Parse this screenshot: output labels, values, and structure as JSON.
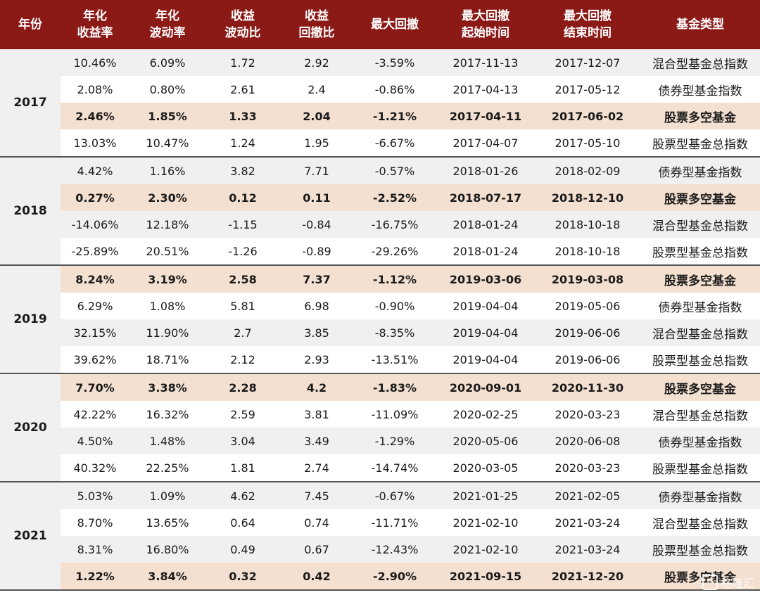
{
  "headers": [
    [
      "年份"
    ],
    [
      "年化",
      "收益率"
    ],
    [
      "年化",
      "波动率"
    ],
    [
      "收益",
      "波动比"
    ],
    [
      "收益",
      "回撤比"
    ],
    [
      "最大回撤"
    ],
    [
      "最大回撤",
      "起始时间"
    ],
    [
      "最大回撤",
      "结束时间"
    ],
    [
      "基金类型"
    ]
  ],
  "groups": [
    {
      "year": "2017",
      "rows": [
        {
          "cells": [
            "10.46%",
            "6.09%",
            "1.72",
            "2.92",
            "-3.59%",
            "2017-11-13",
            "2017-12-07",
            "混合型基金总指数"
          ],
          "highlight": false
        },
        {
          "cells": [
            "2.08%",
            "0.80%",
            "2.61",
            "2.4",
            "-0.86%",
            "2017-04-13",
            "2017-05-12",
            "债券型基金指数"
          ],
          "highlight": false
        },
        {
          "cells": [
            "2.46%",
            "1.85%",
            "1.33",
            "2.04",
            "-1.21%",
            "2017-04-11",
            "2017-06-02",
            "股票多空基金"
          ],
          "highlight": true
        },
        {
          "cells": [
            "13.03%",
            "10.47%",
            "1.24",
            "1.95",
            "-6.67%",
            "2017-04-07",
            "2017-05-10",
            "股票型基金总指数"
          ],
          "highlight": false
        }
      ]
    },
    {
      "year": "2018",
      "rows": [
        {
          "cells": [
            "4.42%",
            "1.16%",
            "3.82",
            "7.71",
            "-0.57%",
            "2018-01-26",
            "2018-02-09",
            "债券型基金指数"
          ],
          "highlight": false
        },
        {
          "cells": [
            "0.27%",
            "2.30%",
            "0.12",
            "0.11",
            "-2.52%",
            "2018-07-17",
            "2018-12-10",
            "股票多空基金"
          ],
          "highlight": true
        },
        {
          "cells": [
            "-14.06%",
            "12.18%",
            "-1.15",
            "-0.84",
            "-16.75%",
            "2018-01-24",
            "2018-10-18",
            "混合型基金总指数"
          ],
          "highlight": false
        },
        {
          "cells": [
            "-25.89%",
            "20.51%",
            "-1.26",
            "-0.89",
            "-29.26%",
            "2018-01-24",
            "2018-10-18",
            "股票型基金总指数"
          ],
          "highlight": false
        }
      ]
    },
    {
      "year": "2019",
      "rows": [
        {
          "cells": [
            "8.24%",
            "3.19%",
            "2.58",
            "7.37",
            "-1.12%",
            "2019-03-06",
            "2019-03-08",
            "股票多空基金"
          ],
          "highlight": true
        },
        {
          "cells": [
            "6.29%",
            "1.08%",
            "5.81",
            "6.98",
            "-0.90%",
            "2019-04-04",
            "2019-05-06",
            "债券型基金指数"
          ],
          "highlight": false
        },
        {
          "cells": [
            "32.15%",
            "11.90%",
            "2.7",
            "3.85",
            "-8.35%",
            "2019-04-04",
            "2019-06-06",
            "混合型基金总指数"
          ],
          "highlight": false
        },
        {
          "cells": [
            "39.62%",
            "18.71%",
            "2.12",
            "2.93",
            "-13.51%",
            "2019-04-04",
            "2019-06-06",
            "股票型基金总指数"
          ],
          "highlight": false
        }
      ]
    },
    {
      "year": "2020",
      "rows": [
        {
          "cells": [
            "7.70%",
            "3.38%",
            "2.28",
            "4.2",
            "-1.83%",
            "2020-09-01",
            "2020-11-30",
            "股票多空基金"
          ],
          "highlight": true
        },
        {
          "cells": [
            "42.22%",
            "16.32%",
            "2.59",
            "3.81",
            "-11.09%",
            "2020-02-25",
            "2020-03-23",
            "混合型基金总指数"
          ],
          "highlight": false
        },
        {
          "cells": [
            "4.50%",
            "1.48%",
            "3.04",
            "3.49",
            "-1.29%",
            "2020-05-06",
            "2020-06-08",
            "债券型基金指数"
          ],
          "highlight": false
        },
        {
          "cells": [
            "40.32%",
            "22.25%",
            "1.81",
            "2.74",
            "-14.74%",
            "2020-03-05",
            "2020-03-23",
            "股票型基金总指数"
          ],
          "highlight": false
        }
      ]
    },
    {
      "year": "2021",
      "rows": [
        {
          "cells": [
            "5.03%",
            "1.09%",
            "4.62",
            "7.45",
            "-0.67%",
            "2021-01-25",
            "2021-02-05",
            "债券型基金指数"
          ],
          "highlight": false
        },
        {
          "cells": [
            "8.70%",
            "13.65%",
            "0.64",
            "0.74",
            "-11.71%",
            "2021-02-10",
            "2021-03-24",
            "混合型基金总指数"
          ],
          "highlight": false
        },
        {
          "cells": [
            "8.31%",
            "16.80%",
            "0.49",
            "0.67",
            "-12.43%",
            "2021-02-10",
            "2021-03-24",
            "股票型基金总指数"
          ],
          "highlight": false
        },
        {
          "cells": [
            "1.22%",
            "3.84%",
            "0.32",
            "0.42",
            "-2.90%",
            "2021-09-15",
            "2021-12-20",
            "股票多空基金"
          ],
          "highlight": true
        }
      ]
    }
  ],
  "watermark": {
    "icon": "gelonghui-logo-icon",
    "text": "格隆汇"
  }
}
